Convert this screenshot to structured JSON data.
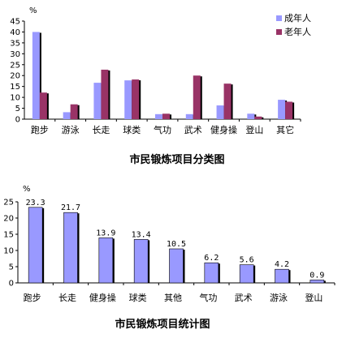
{
  "chart_data": [
    {
      "type": "bar",
      "title": "市民锻炼项目分类图",
      "ylabel": "%",
      "ylim": [
        0,
        45
      ],
      "yticks": [
        0,
        5,
        10,
        15,
        20,
        25,
        30,
        35,
        40,
        45
      ],
      "categories": [
        "跑步",
        "游泳",
        "长走",
        "球类",
        "气功",
        "武术",
        "健身操",
        "登山",
        "其它"
      ],
      "series": [
        {
          "name": "成年人",
          "color": "#9999ff",
          "values": [
            40,
            3.2,
            16.7,
            17.8,
            2.3,
            2.3,
            6.3,
            2.5,
            8.9
          ]
        },
        {
          "name": "老年人",
          "color": "#993366",
          "values": [
            12.2,
            6.8,
            22.7,
            18.2,
            2.5,
            20.0,
            16.3,
            1.2,
            8.0
          ]
        }
      ],
      "legend": "top-right",
      "grid": false
    },
    {
      "type": "bar",
      "title": "市民锻炼项目统计图",
      "ylabel": "%",
      "ylim": [
        0,
        25
      ],
      "yticks": [
        0,
        5,
        10,
        15,
        20,
        25
      ],
      "categories": [
        "跑步",
        "长走",
        "健身操",
        "球类",
        "其他",
        "气功",
        "武术",
        "游泳",
        "登山"
      ],
      "series": [
        {
          "color": "#9999ff",
          "values": [
            23.3,
            21.7,
            13.9,
            13.4,
            10.5,
            6.2,
            5.6,
            4.2,
            0.9
          ]
        }
      ],
      "data_labels": [
        "23.3",
        "21.7",
        "13.9",
        "13.4",
        "10.5",
        "6.2",
        "5.6",
        "4.2",
        "0.9"
      ],
      "grid": false
    }
  ]
}
